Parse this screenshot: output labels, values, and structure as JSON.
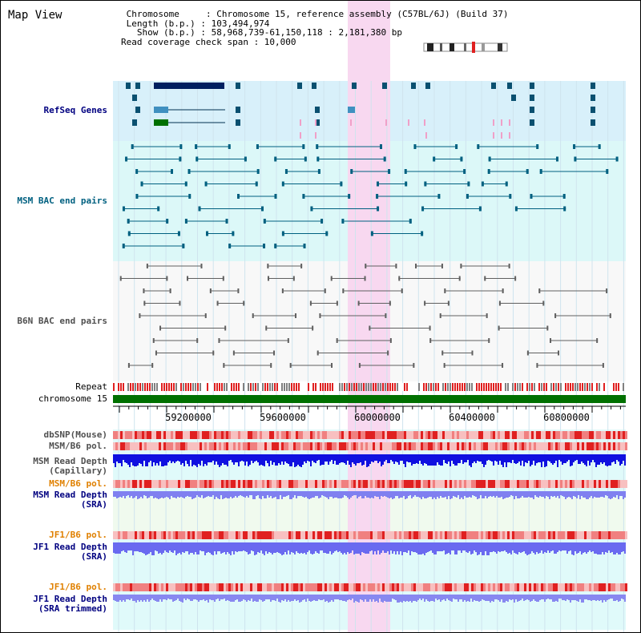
{
  "title": "Map View",
  "info": {
    "line1": " Chromosome     : Chromosome 15, reference assembly (C57BL/6J) (Build 37)",
    "line2": " Length (b.p.) : 103,494,974",
    "line3": "   Show (b.p.) : 58,968,739-61,150,118 : 2,181,380 bp",
    "line4": "Read coverage check span : 10,000"
  },
  "tracks": {
    "refseq": "RefSeq Genes",
    "msm_bac": "MSM BAC end pairs",
    "b6n_bac": "B6N BAC end pairs",
    "repeat": "Repeat",
    "chromosome": "chromosome 15",
    "dbsnp": "dbSNP(Mouse)",
    "msm_b6_pol": "MSM/B6 pol.",
    "msm_depth_cap_1": "MSM Read Depth",
    "msm_depth_cap_2": "(Capillary)",
    "msm_b6_pol_2": "MSM/B6 pol.",
    "msm_depth_sra_1": "MSM Read Depth",
    "msm_depth_sra_2": "(SRA)",
    "jf1_b6_pol": "JF1/B6 pol.",
    "jf1_depth_sra_1": "JF1 Read Depth",
    "jf1_depth_sra_2": "(SRA)",
    "jf1_b6_pol_2": "JF1/B6 pol.",
    "jf1_depth_trim_1": "JF1 Read Depth",
    "jf1_depth_trim_2": "(SRA trimmed)"
  },
  "axis": {
    "ticks": [
      "59200000",
      "59600000",
      "60000000",
      "60400000",
      "60800000"
    ]
  },
  "colors": {
    "refseq_bg": "#d8f0fa",
    "msm_bg": "#dcf8f8",
    "b6n_bg": "#f8f8f8",
    "highlight": "#f8d8f0",
    "chromosome": "#007000",
    "gene_dark": "#002060",
    "msm_line": "#006080",
    "b6n_line": "#606060"
  }
}
